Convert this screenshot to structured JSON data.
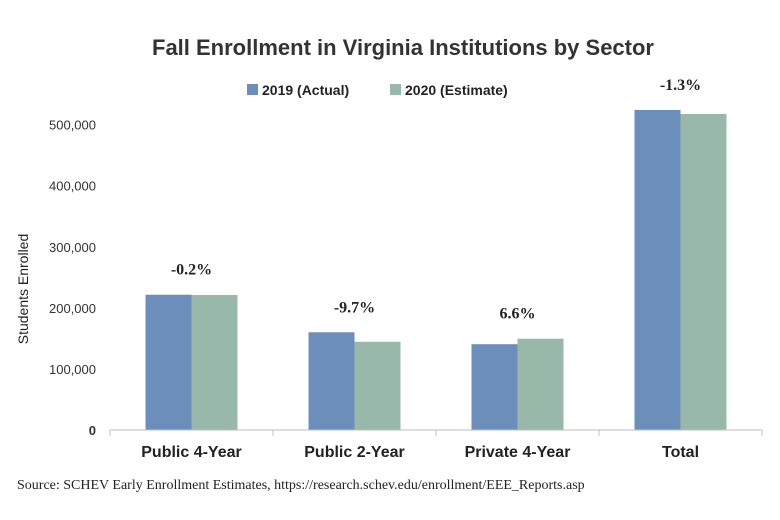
{
  "chart_data": {
    "type": "bar",
    "title": "Fall Enrollment in Virginia Institutions by Sector",
    "ylabel": "Students Enrolled",
    "xlabel": "",
    "categories": [
      "Public 4-Year",
      "Public 2-Year",
      "Private 4-Year",
      "Total"
    ],
    "series": [
      {
        "name": "2019 (Actual)",
        "color": "#6c8ebb",
        "values": [
          221500,
          160000,
          140500,
          524000
        ]
      },
      {
        "name": "2020 (Estimate)",
        "color": "#98b9aa",
        "values": [
          221000,
          144500,
          149500,
          517500
        ]
      }
    ],
    "annotations": [
      "-0.2%",
      "-9.7%",
      "6.6%",
      "-1.3%"
    ],
    "yticks": [
      0,
      100000,
      200000,
      300000,
      400000,
      500000
    ],
    "ytick_labels": [
      "0",
      "100,000",
      "200,000",
      "300,000",
      "400,000",
      "500,000"
    ],
    "ylim": [
      0,
      560000
    ],
    "legend_position": "top-center",
    "grid": false
  },
  "source": "Source: SCHEV Early Enrollment Estimates, https://research.schev.edu/enrollment/EEE_Reports.asp"
}
